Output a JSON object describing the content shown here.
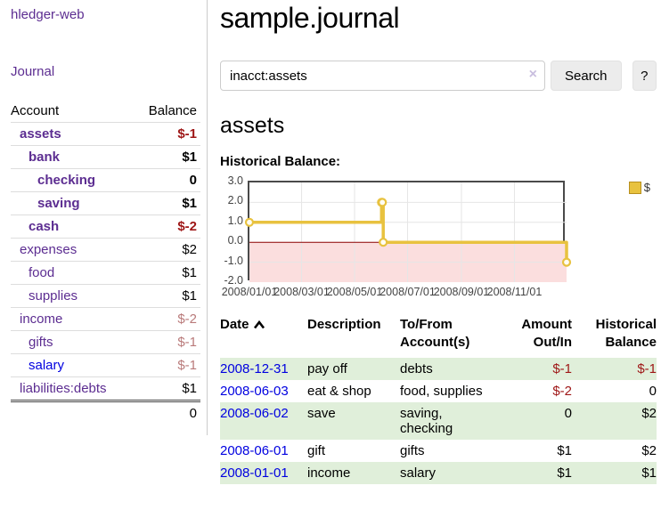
{
  "colors": {
    "link_purple": "#5c2d91",
    "link_blue": "#0000e0",
    "neg_strong": "#9e1616",
    "neg_soft": "#b97a7a",
    "row_green": "#e0efda",
    "series_gold": "#e8c23f",
    "zero_line": "#8b0000",
    "neg_region": "#fbdede"
  },
  "app": {
    "brand": "hledger-web"
  },
  "sidebar": {
    "journal_label": "Journal",
    "accounts": {
      "col_account": "Account",
      "col_balance": "Balance",
      "rows": [
        {
          "name": "assets",
          "balance": "$-1",
          "depth": 1,
          "matched": true,
          "bal_class": "neg-strong",
          "link_class": "visited"
        },
        {
          "name": "bank",
          "balance": "$1",
          "depth": 2,
          "matched": true,
          "bal_class": "pos",
          "link_class": "visited"
        },
        {
          "name": "checking",
          "balance": "0",
          "depth": 3,
          "matched": true,
          "bal_class": "pos",
          "link_class": "visited"
        },
        {
          "name": "saving",
          "balance": "$1",
          "depth": 3,
          "matched": true,
          "bal_class": "pos",
          "link_class": "visited"
        },
        {
          "name": "cash",
          "balance": "$-2",
          "depth": 2,
          "matched": true,
          "bal_class": "neg-strong",
          "link_class": "visited"
        },
        {
          "name": "expenses",
          "balance": "$2",
          "depth": 1,
          "matched": false,
          "bal_class": "pos",
          "link_class": "visited"
        },
        {
          "name": "food",
          "balance": "$1",
          "depth": 2,
          "matched": false,
          "bal_class": "pos",
          "link_class": "visited"
        },
        {
          "name": "supplies",
          "balance": "$1",
          "depth": 2,
          "matched": false,
          "bal_class": "pos",
          "link_class": "visited"
        },
        {
          "name": "income",
          "balance": "$-2",
          "depth": 1,
          "matched": false,
          "bal_class": "neg-soft",
          "link_class": "visited"
        },
        {
          "name": "gifts",
          "balance": "$-1",
          "depth": 2,
          "matched": false,
          "bal_class": "neg-soft",
          "link_class": "visited"
        },
        {
          "name": "salary",
          "balance": "$-1",
          "depth": 2,
          "matched": false,
          "bal_class": "neg-soft",
          "link_class": "unvisited"
        },
        {
          "name": "liabilities:debts",
          "balance": "$1",
          "depth": 1,
          "matched": false,
          "bal_class": "pos",
          "link_class": "visited"
        }
      ],
      "total": "0"
    }
  },
  "main": {
    "title": "sample.journal",
    "search": {
      "value": "inacct:assets",
      "clear": "×",
      "button": "Search",
      "help": "?"
    },
    "account_heading": "assets",
    "chart_heading": "Historical Balance:"
  },
  "chart_data": {
    "type": "line",
    "step": true,
    "title": "Historical Balance",
    "series": [
      {
        "name": "$",
        "color": "#e8c23f",
        "points": [
          [
            "2008-01-01",
            1
          ],
          [
            "2008-06-01",
            2
          ],
          [
            "2008-06-02",
            2
          ],
          [
            "2008-06-03",
            0
          ],
          [
            "2008-12-31",
            -1
          ]
        ]
      }
    ],
    "x_range": [
      "2008-01-01",
      "2008-12-31"
    ],
    "x_ticks": [
      "2008/01/01",
      "2008/03/01",
      "2008/05/01",
      "2008/07/01",
      "2008/09/01",
      "2008/11/01"
    ],
    "y_ticks": [
      "3.0",
      "2.0",
      "1.0",
      "0.0",
      "-1.0",
      "-2.0"
    ],
    "ylim": [
      -2,
      3
    ],
    "grid": true,
    "legend_position": "top-right",
    "negative_region_shaded": true
  },
  "register": {
    "headers": {
      "date": "Date",
      "description": "Description",
      "to_from": "To/From Account(s)",
      "amount": "Amount Out/In",
      "balance": "Historical Balance"
    },
    "rows": [
      {
        "date": "2008-12-31",
        "description": "pay off",
        "accounts": "debts",
        "amount": "$-1",
        "balance": "$-1",
        "amount_neg": true,
        "balance_neg": true,
        "shaded": true
      },
      {
        "date": "2008-06-03",
        "description": "eat & shop",
        "accounts": "food, supplies",
        "amount": "$-2",
        "balance": "0",
        "amount_neg": true,
        "balance_neg": false,
        "shaded": false
      },
      {
        "date": "2008-06-02",
        "description": "save",
        "accounts": "saving,\nchecking",
        "amount": "0",
        "balance": "$2",
        "amount_neg": false,
        "balance_neg": false,
        "shaded": true
      },
      {
        "date": "2008-06-01",
        "description": "gift",
        "accounts": "gifts",
        "amount": "$1",
        "balance": "$2",
        "amount_neg": false,
        "balance_neg": false,
        "shaded": false
      },
      {
        "date": "2008-01-01",
        "description": "income",
        "accounts": "salary",
        "amount": "$1",
        "balance": "$1",
        "amount_neg": false,
        "balance_neg": false,
        "shaded": true
      }
    ]
  }
}
